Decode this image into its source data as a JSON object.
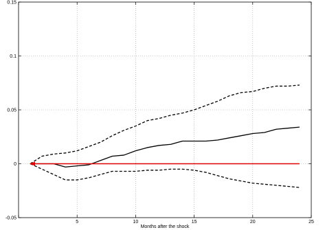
{
  "chart_data": {
    "type": "line",
    "title": "",
    "xlabel": "Months after the shock",
    "ylabel": "",
    "xlim": [
      0,
      25
    ],
    "ylim": [
      -0.05,
      0.15
    ],
    "xticks": [
      0,
      5,
      10,
      15,
      20,
      25
    ],
    "xtick_labels": [
      "",
      "5",
      "10",
      "15",
      "20",
      "25"
    ],
    "yticks": [
      -0.05,
      0,
      0.05,
      0.1,
      0.15
    ],
    "ytick_labels": [
      "-0.05",
      "0",
      "0.05",
      "0.1",
      "0.15"
    ],
    "grid": true,
    "legend": "none",
    "x": [
      1,
      2,
      3,
      4,
      5,
      6,
      7,
      8,
      9,
      10,
      11,
      12,
      13,
      14,
      15,
      16,
      17,
      18,
      19,
      20,
      21,
      22,
      23,
      24
    ],
    "series": [
      {
        "style": "solid",
        "color": "#000000",
        "values": [
          0,
          0,
          0,
          -0.003,
          -0.002,
          -0.001,
          0.003,
          0.007,
          0.008,
          0.012,
          0.015,
          0.017,
          0.018,
          0.021,
          0.021,
          0.021,
          0.022,
          0.024,
          0.026,
          0.028,
          0.029,
          0.032,
          0.033,
          0.034
        ]
      },
      {
        "style": "dashed",
        "color": "#000000",
        "values": [
          0,
          0.007,
          0.009,
          0.01,
          0.012,
          0.016,
          0.02,
          0.026,
          0.031,
          0.035,
          0.04,
          0.042,
          0.045,
          0.047,
          0.05,
          0.054,
          0.058,
          0.063,
          0.066,
          0.067,
          0.07,
          0.072,
          0.072,
          0.073
        ]
      },
      {
        "style": "dashed",
        "color": "#000000",
        "values": [
          0,
          -0.005,
          -0.01,
          -0.015,
          -0.015,
          -0.013,
          -0.01,
          -0.007,
          -0.007,
          -0.007,
          -0.006,
          -0.006,
          -0.005,
          -0.005,
          -0.006,
          -0.008,
          -0.011,
          -0.014,
          -0.016,
          -0.018,
          -0.019,
          -0.02,
          -0.021,
          -0.022
        ]
      },
      {
        "style": "solid",
        "color": "#e00000",
        "arrow_at_start": true,
        "values": [
          0,
          0,
          0,
          0,
          0,
          0,
          0,
          0,
          0,
          0,
          0,
          0,
          0,
          0,
          0,
          0,
          0,
          0,
          0,
          0,
          0,
          0,
          0,
          0
        ]
      }
    ]
  }
}
